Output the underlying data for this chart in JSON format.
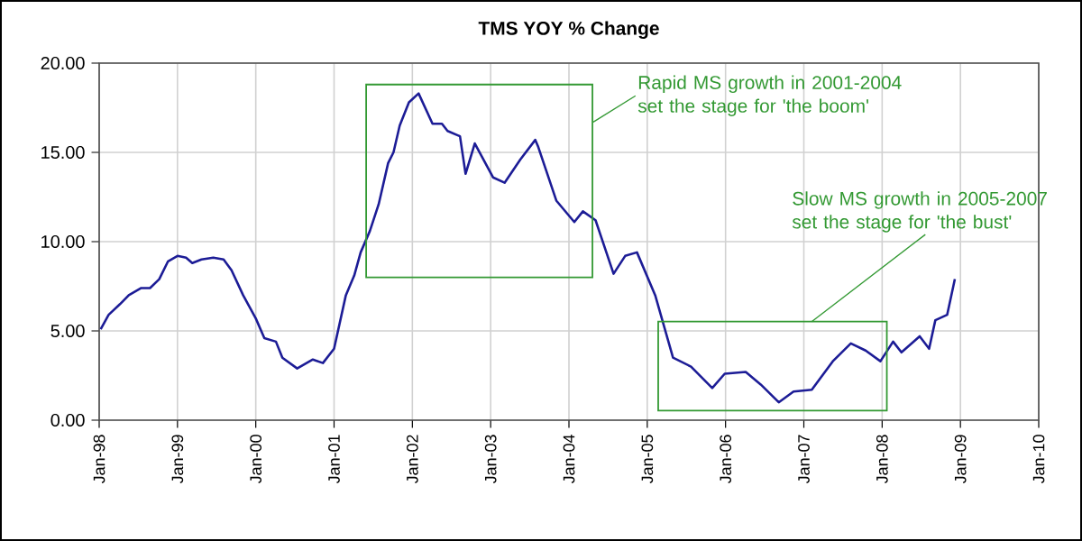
{
  "chart_data": {
    "type": "line",
    "title": "TMS YOY % Change",
    "x": [
      "1998-01-08",
      "1998-02-14",
      "1998-04-08",
      "1998-05-19",
      "1998-07-16",
      "1998-08-26",
      "1998-10-08",
      "1998-11-18",
      "1999-01-01",
      "1999-02-10",
      "1999-03-11",
      "1999-04-23",
      "1999-06-17",
      "1999-08-04",
      "1999-09-10",
      "1999-11-03",
      "2000-01-01",
      "2000-02-10",
      "2000-04-05",
      "2000-05-05",
      "2000-07-13",
      "2000-09-24",
      "2000-11-10",
      "2001-01-01",
      "2001-02-25",
      "2001-04-05",
      "2001-05-05",
      "2001-06-17",
      "2001-07-28",
      "2001-09-10",
      "2001-10-05",
      "2001-11-03",
      "2001-12-16",
      "2002-01-30",
      "2002-04-05",
      "2002-05-19",
      "2002-06-14",
      "2002-08-11",
      "2002-09-06",
      "2002-10-19",
      "2003-01-12",
      "2003-03-07",
      "2003-05-19",
      "2003-07-28",
      "2003-08-11",
      "2003-11-03",
      "2004-01-26",
      "2004-03-07",
      "2004-05-05",
      "2004-07-28",
      "2004-09-20",
      "2004-11-14",
      "2005-02-07",
      "2005-05-01",
      "2005-07-24",
      "2005-10-31",
      "2005-12-28",
      "2006-04-05",
      "2006-06-14",
      "2006-09-06",
      "2006-11-14",
      "2007-02-07",
      "2007-05-16",
      "2007-08-08",
      "2007-10-16",
      "2007-12-24",
      "2008-02-21",
      "2008-04-01",
      "2008-06-25",
      "2008-08-08",
      "2008-09-06",
      "2008-10-31",
      "2008-12-06"
    ],
    "values": [
      5.1,
      5.9,
      6.5,
      7.0,
      7.4,
      7.4,
      7.9,
      8.9,
      9.2,
      9.1,
      8.8,
      9.0,
      9.1,
      9.0,
      8.4,
      7.0,
      5.7,
      4.6,
      4.4,
      3.5,
      2.9,
      3.4,
      3.2,
      4.0,
      7.0,
      8.1,
      9.4,
      10.6,
      12.1,
      14.4,
      15.0,
      16.5,
      17.8,
      18.3,
      16.6,
      16.6,
      16.2,
      15.9,
      13.8,
      15.5,
      13.6,
      13.3,
      14.6,
      15.7,
      15.3,
      12.3,
      11.1,
      11.7,
      11.2,
      8.2,
      9.2,
      9.4,
      7.0,
      3.5,
      3.0,
      1.8,
      2.6,
      2.7,
      2.0,
      1.0,
      1.6,
      1.7,
      3.3,
      4.3,
      3.9,
      3.3,
      4.4,
      3.8,
      4.7,
      4.0,
      5.6,
      5.9,
      7.9
    ],
    "color": "#1c1c96",
    "xlim": [
      "1998-01",
      "2010-01"
    ],
    "xticks": [
      {
        "value": "1998-01",
        "label": "Jan-98"
      },
      {
        "value": "1999-01",
        "label": "Jan-99"
      },
      {
        "value": "2000-01",
        "label": "Jan-00"
      },
      {
        "value": "2001-01",
        "label": "Jan-01"
      },
      {
        "value": "2002-01",
        "label": "Jan-02"
      },
      {
        "value": "2003-01",
        "label": "Jan-03"
      },
      {
        "value": "2004-01",
        "label": "Jan-04"
      },
      {
        "value": "2005-01",
        "label": "Jan-05"
      },
      {
        "value": "2006-01",
        "label": "Jan-06"
      },
      {
        "value": "2007-01",
        "label": "Jan-07"
      },
      {
        "value": "2008-01",
        "label": "Jan-08"
      },
      {
        "value": "2009-01",
        "label": "Jan-09"
      },
      {
        "value": "2010-01",
        "label": "Jan-10"
      }
    ],
    "ylim": [
      0,
      20
    ],
    "yticks": [
      {
        "value": 0,
        "label": "0.00"
      },
      {
        "value": 5,
        "label": "5.00"
      },
      {
        "value": 10,
        "label": "10.00"
      },
      {
        "value": 15,
        "label": "15.00"
      },
      {
        "value": 20,
        "label": "20.00"
      }
    ],
    "grid": true,
    "annotations": [
      "Rapid MS growth in 2001-2004 set the stage for 'the boom'",
      "Slow MS growth in 2005-2007 set the stage for 'the bust'"
    ]
  }
}
